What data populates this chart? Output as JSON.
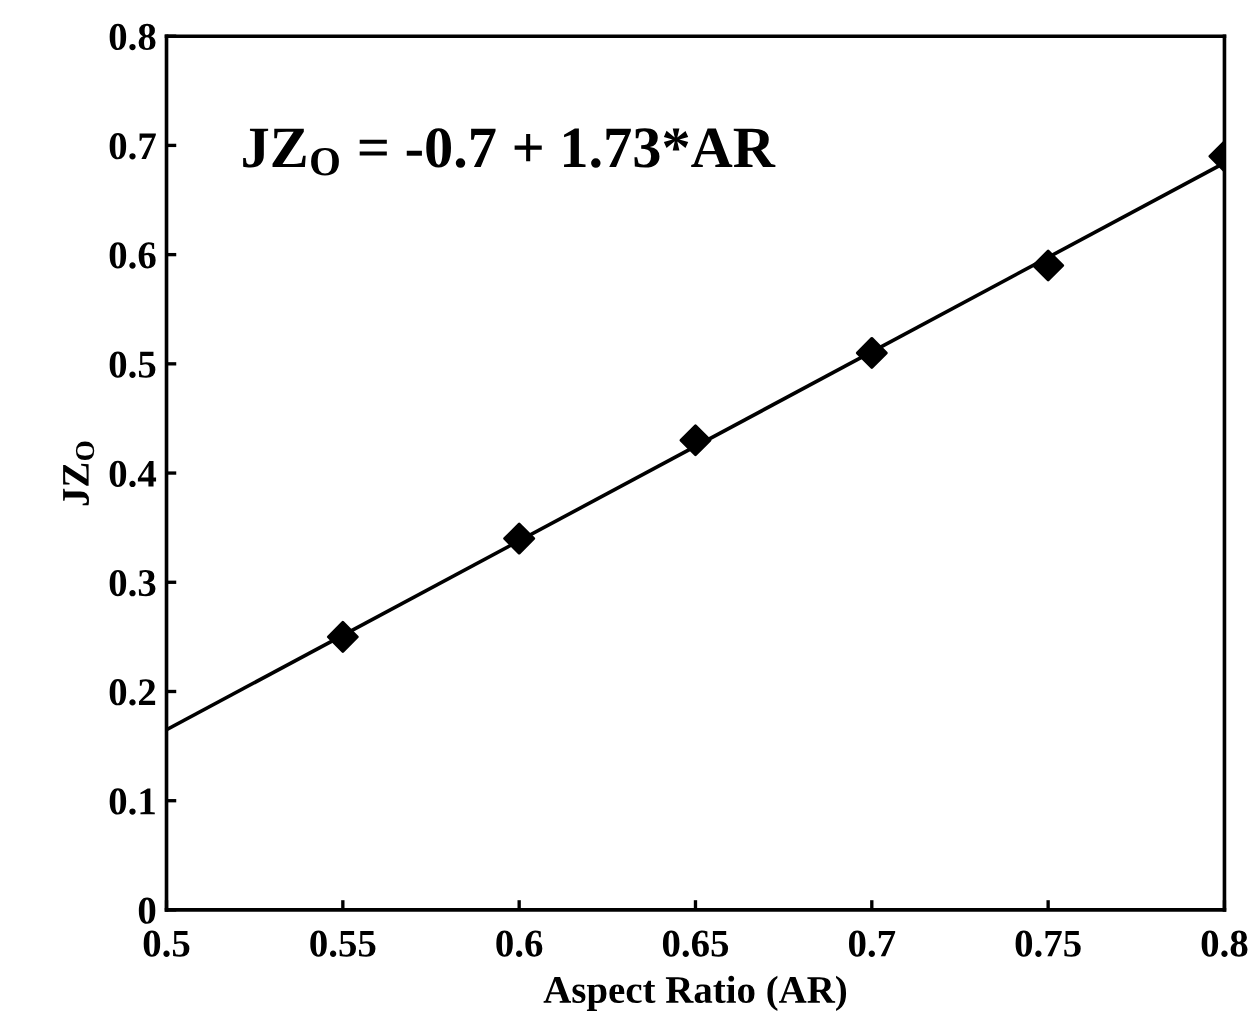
{
  "chart_data": {
    "type": "scatter",
    "xlabel": "Aspect Ratio (AR)",
    "ylabel": "JZ$_{O}$",
    "annotations": [
      "JZ$_{O}$ = -0.7 + 1.73*AR"
    ],
    "x": [
      0.55,
      0.6,
      0.65,
      0.7,
      0.75,
      0.8
    ],
    "series": [
      {
        "color": "#000000",
        "marker": "diamond",
        "values": [
          0.25,
          0.34,
          0.43,
          0.51,
          0.59,
          0.69
        ]
      },
      {
        "type": "line",
        "color": "#000000",
        "x": [
          0.5,
          0.8
        ],
        "values": [
          0.165,
          0.684
        ]
      }
    ],
    "xlim": [
      0.5,
      0.8
    ],
    "xticks": [
      0.5,
      0.55,
      0.6,
      0.65,
      0.7,
      0.75,
      0.8
    ],
    "ylim": [
      0,
      0.8
    ],
    "yticks": [
      0,
      0.1,
      0.2,
      0.3,
      0.4,
      0.5,
      0.6,
      0.7,
      0.8
    ],
    "grid": false,
    "legend": false
  }
}
